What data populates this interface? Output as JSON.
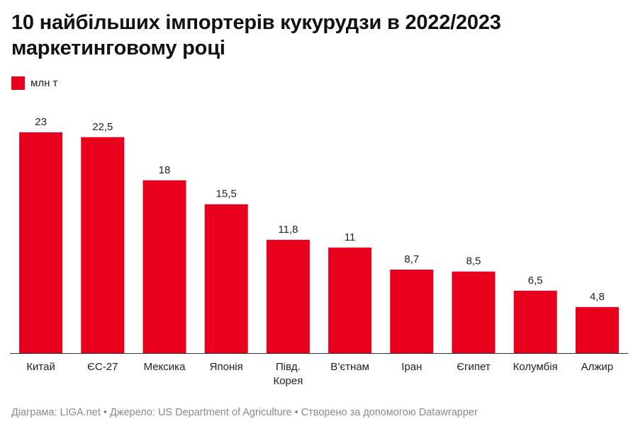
{
  "title": "10 найбільших імпортерів кукурудзи в 2022/2023 маркетинговому році",
  "legend": {
    "label": "млн т",
    "color": "#e8001c"
  },
  "footer": "Діаграма: LIGA.net • Джерело: US Department of Agriculture • Створено за допомогою Datawrapper",
  "chart_data": {
    "type": "bar",
    "categories": [
      "Китай",
      "ЄС-27",
      "Мексика",
      "Японія",
      "Півд. Корея",
      "В’єтнам",
      "Іран",
      "Єгипет",
      "Колумбія",
      "Алжир"
    ],
    "category_lines": [
      [
        "Китай"
      ],
      [
        "ЄС-27"
      ],
      [
        "Мексика"
      ],
      [
        "Японія"
      ],
      [
        "Півд.",
        "Корея"
      ],
      [
        "В’єтнам"
      ],
      [
        "Іран"
      ],
      [
        "Єгипет"
      ],
      [
        "Колумбія"
      ],
      [
        "Алжир"
      ]
    ],
    "values": [
      23,
      22.5,
      18,
      15.5,
      11.8,
      11,
      8.7,
      8.5,
      6.5,
      4.8
    ],
    "value_labels": [
      "23",
      "22,5",
      "18",
      "15,5",
      "11,8",
      "11",
      "8,7",
      "8,5",
      "6,5",
      "4,8"
    ],
    "ylim": [
      0,
      23
    ],
    "bar_color": "#e8001c",
    "grid": false,
    "legend_position": "top-left"
  }
}
